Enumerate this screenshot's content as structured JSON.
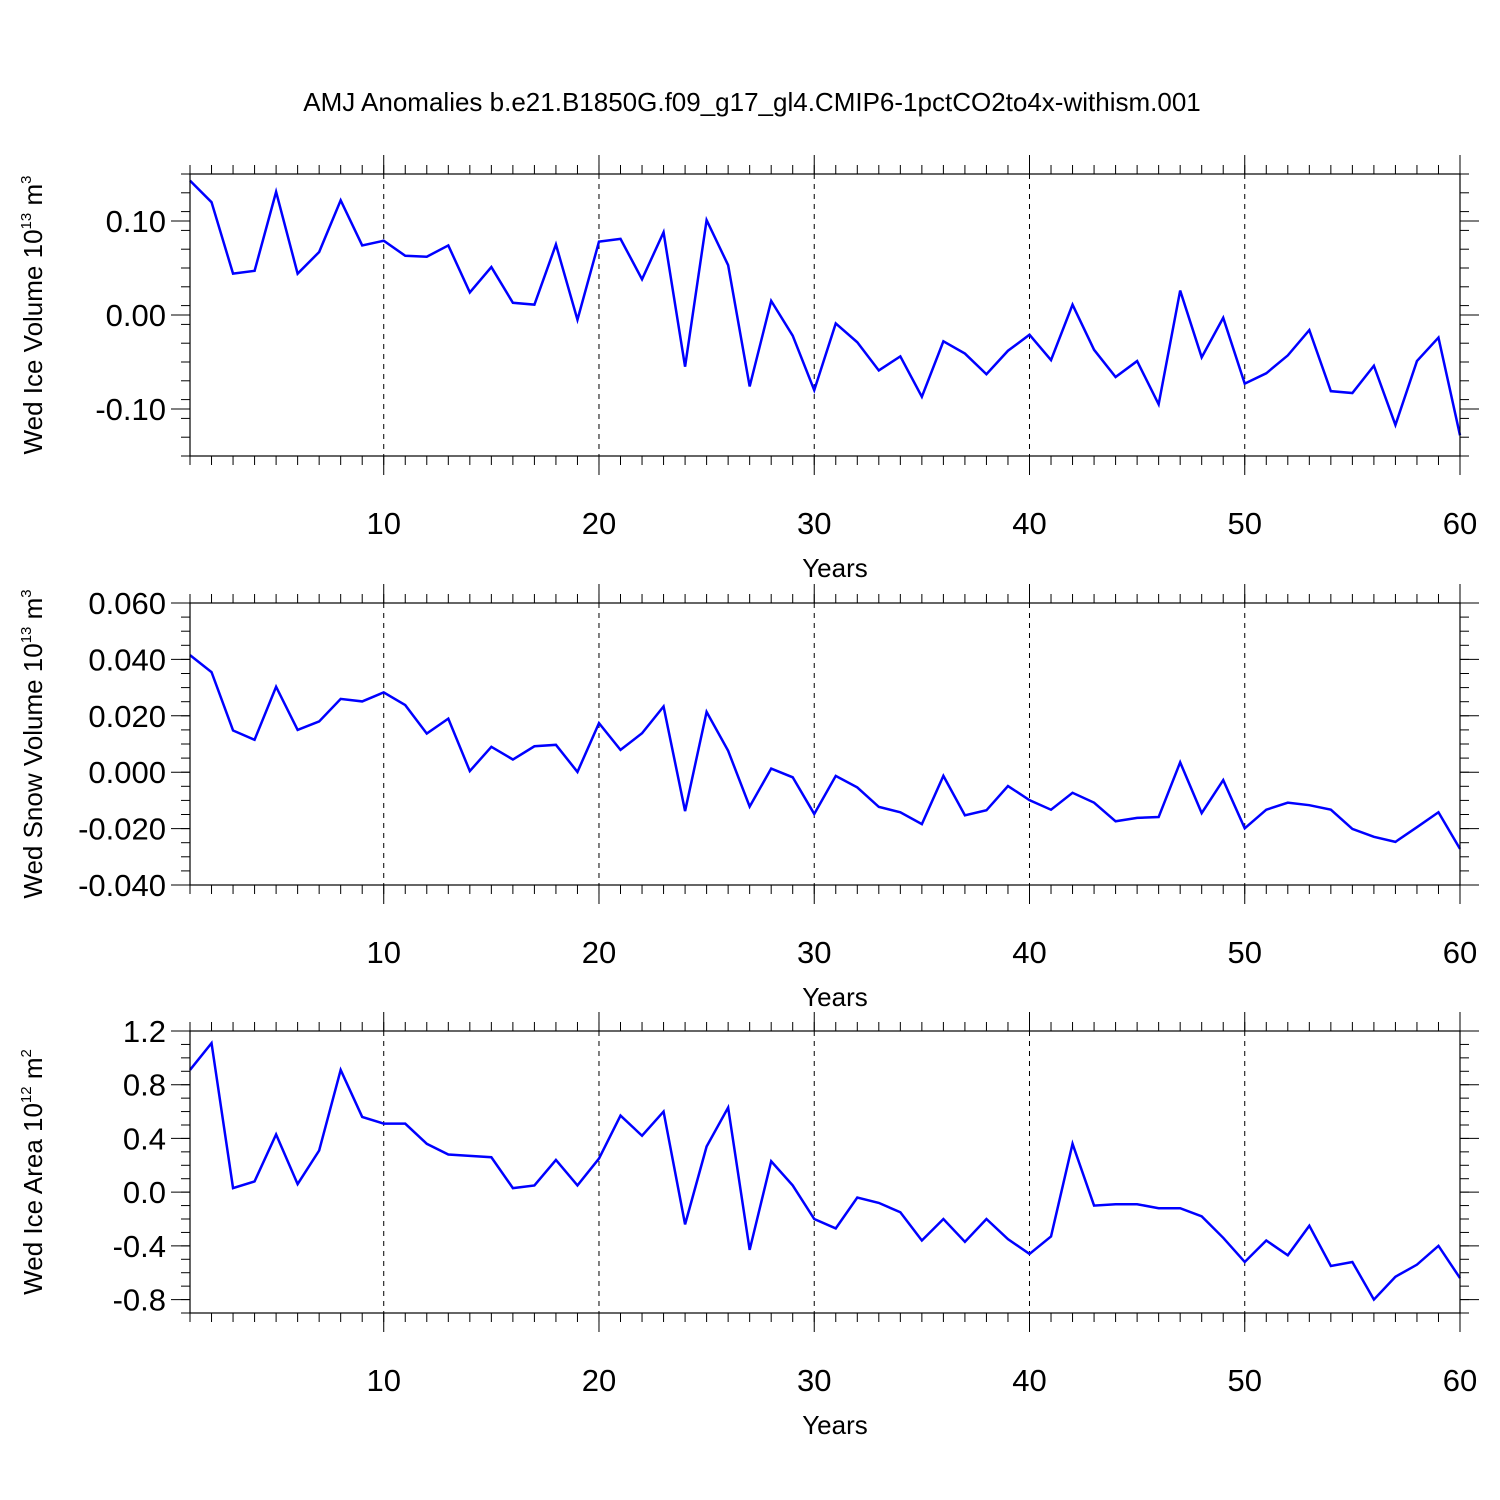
{
  "title": "AMJ Anomalies b.e21.B1850G.f09_g17_gl4.CMIP6-1pctCO2to4x-withism.001",
  "line_color": "#0000ff",
  "chart_data": [
    {
      "type": "line",
      "xlabel": "Years",
      "ylabel": {
        "base": "Wed Ice Volume 10",
        "exp": "13",
        "unit": " m",
        "unit_exp": "3"
      },
      "xlim": [
        1,
        60
      ],
      "ylim": [
        -0.15,
        0.15
      ],
      "xticks": [
        10,
        20,
        30,
        40,
        50,
        60
      ],
      "yticks": [
        0.1,
        0.0,
        -0.1
      ],
      "ytick_labels": [
        "0.10",
        "0.00",
        "-0.10"
      ],
      "y_minor_step": 0.02,
      "x": [
        1,
        2,
        3,
        4,
        5,
        6,
        7,
        8,
        9,
        10,
        11,
        12,
        13,
        14,
        15,
        16,
        17,
        18,
        19,
        20,
        21,
        22,
        23,
        24,
        25,
        26,
        27,
        28,
        29,
        30,
        31,
        32,
        33,
        34,
        35,
        36,
        37,
        38,
        39,
        40,
        41,
        42,
        43,
        44,
        45,
        46,
        47,
        48,
        49,
        50,
        51,
        52,
        53,
        54,
        55,
        56,
        57,
        58,
        59,
        60
      ],
      "series": [
        {
          "values": [
            0.143,
            0.12,
            0.044,
            0.047,
            0.131,
            0.044,
            0.067,
            0.122,
            0.074,
            0.079,
            0.063,
            0.062,
            0.074,
            0.024,
            0.051,
            0.013,
            0.011,
            0.075,
            -0.005,
            0.078,
            0.081,
            0.038,
            0.088,
            -0.055,
            0.101,
            0.053,
            -0.076,
            0.015,
            -0.022,
            -0.08,
            -0.009,
            -0.029,
            -0.059,
            -0.044,
            -0.087,
            -0.028,
            -0.041,
            -0.063,
            -0.038,
            -0.021,
            -0.048,
            0.011,
            -0.037,
            -0.066,
            -0.049,
            -0.095,
            0.026,
            -0.045,
            -0.003,
            -0.073,
            -0.062,
            -0.043,
            -0.016,
            -0.081,
            -0.083,
            -0.054,
            -0.117,
            -0.049,
            -0.024,
            -0.128
          ]
        }
      ]
    },
    {
      "type": "line",
      "xlabel": "Years",
      "ylabel": {
        "base": "Wed Snow Volume 10",
        "exp": "13",
        "unit": " m",
        "unit_exp": "3"
      },
      "xlim": [
        1,
        60
      ],
      "ylim": [
        -0.04,
        0.06
      ],
      "xticks": [
        10,
        20,
        30,
        40,
        50,
        60
      ],
      "yticks": [
        0.06,
        0.04,
        0.02,
        0.0,
        -0.02,
        -0.04
      ],
      "ytick_labels": [
        "0.060",
        "0.040",
        "0.020",
        "0.000",
        "-0.020",
        "-0.040"
      ],
      "y_minor_step": 0.005,
      "x": [
        1,
        2,
        3,
        4,
        5,
        6,
        7,
        8,
        9,
        10,
        11,
        12,
        13,
        14,
        15,
        16,
        17,
        18,
        19,
        20,
        21,
        22,
        23,
        24,
        25,
        26,
        27,
        28,
        29,
        30,
        31,
        32,
        33,
        34,
        35,
        36,
        37,
        38,
        39,
        40,
        41,
        42,
        43,
        44,
        45,
        46,
        47,
        48,
        49,
        50,
        51,
        52,
        53,
        54,
        55,
        56,
        57,
        58,
        59,
        60
      ],
      "series": [
        {
          "values": [
            0.0415,
            0.0355,
            0.0148,
            0.0115,
            0.0303,
            0.015,
            0.018,
            0.026,
            0.0251,
            0.0283,
            0.0238,
            0.0137,
            0.019,
            0.0004,
            0.009,
            0.0045,
            0.0092,
            0.0097,
            0.0001,
            0.0174,
            0.0079,
            0.0138,
            0.0233,
            -0.0138,
            0.0214,
            0.0076,
            -0.0122,
            0.0013,
            -0.0018,
            -0.0148,
            -0.0013,
            -0.0054,
            -0.0123,
            -0.0142,
            -0.0184,
            -0.0013,
            -0.0153,
            -0.0135,
            -0.0049,
            -0.0099,
            -0.0133,
            -0.0073,
            -0.0108,
            -0.0174,
            -0.0162,
            -0.0159,
            0.0035,
            -0.0145,
            -0.0028,
            -0.0199,
            -0.0133,
            -0.0108,
            -0.0117,
            -0.0133,
            -0.0201,
            -0.0229,
            -0.0247,
            -0.0195,
            -0.0142,
            -0.0272
          ]
        }
      ]
    },
    {
      "type": "line",
      "xlabel": "Years",
      "ylabel": {
        "base": "Wed Ice Area 10",
        "exp": "12",
        "unit": " m",
        "unit_exp": "2"
      },
      "xlim": [
        1,
        60
      ],
      "ylim": [
        -0.9,
        1.2
      ],
      "xticks": [
        10,
        20,
        30,
        40,
        50,
        60
      ],
      "yticks": [
        1.2,
        0.8,
        0.4,
        0.0,
        -0.4,
        -0.8
      ],
      "ytick_labels": [
        "1.2",
        "0.8",
        "0.4",
        "0.0",
        "-0.4",
        "-0.8"
      ],
      "y_minor_step": 0.1,
      "x": [
        1,
        2,
        3,
        4,
        5,
        6,
        7,
        8,
        9,
        10,
        11,
        12,
        13,
        14,
        15,
        16,
        17,
        18,
        19,
        20,
        21,
        22,
        23,
        24,
        25,
        26,
        27,
        28,
        29,
        30,
        31,
        32,
        33,
        34,
        35,
        36,
        37,
        38,
        39,
        40,
        41,
        42,
        43,
        44,
        45,
        46,
        47,
        48,
        49,
        50,
        51,
        52,
        53,
        54,
        55,
        56,
        57,
        58,
        59,
        60
      ],
      "series": [
        {
          "values": [
            0.91,
            1.11,
            0.03,
            0.08,
            0.43,
            0.06,
            0.31,
            0.91,
            0.56,
            0.51,
            0.51,
            0.36,
            0.28,
            0.27,
            0.26,
            0.03,
            0.05,
            0.24,
            0.05,
            0.25,
            0.57,
            0.42,
            0.6,
            -0.24,
            0.34,
            0.63,
            -0.43,
            0.23,
            0.05,
            -0.2,
            -0.27,
            -0.04,
            -0.08,
            -0.15,
            -0.36,
            -0.2,
            -0.37,
            -0.2,
            -0.35,
            -0.46,
            -0.33,
            0.36,
            -0.1,
            -0.09,
            -0.09,
            -0.12,
            -0.12,
            -0.18,
            -0.34,
            -0.52,
            -0.36,
            -0.47,
            -0.25,
            -0.55,
            -0.52,
            -0.8,
            -0.63,
            -0.54,
            -0.4,
            -0.64
          ]
        }
      ]
    }
  ]
}
